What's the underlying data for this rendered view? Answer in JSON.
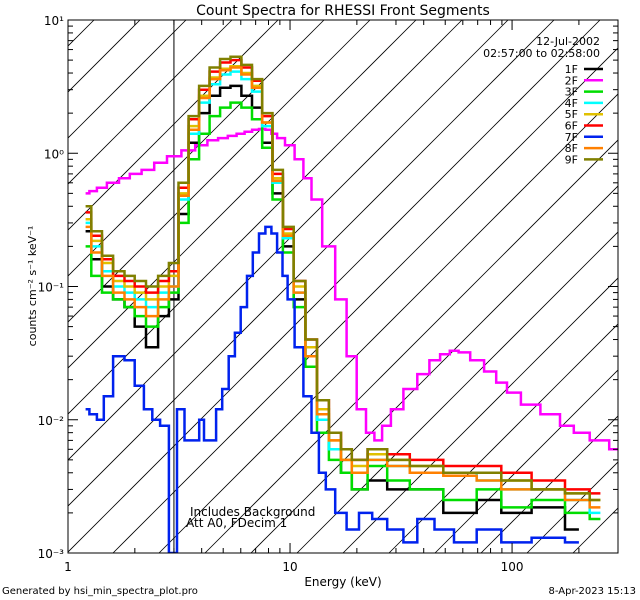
{
  "footer": {
    "generated_by": "Generated by hsi_min_spectra_plot.pro",
    "timestamp": "8-Apr-2023 15:13"
  },
  "annotations": {
    "date": "12-Jul-2002",
    "time_range": "02:57:00 to 02:58:00",
    "background_note": "Includes Background",
    "attenuator_note": "Att A0, FDecim 1"
  },
  "chart_data": {
    "type": "line",
    "title": "Count Spectra for RHESSI Front Segments",
    "xlabel": "Energy (keV)",
    "ylabel": "counts cm⁻² s⁻¹ keV⁻¹",
    "xscale": "log",
    "yscale": "log",
    "xlim": [
      1,
      300
    ],
    "ylim": [
      0.001,
      10
    ],
    "x_ticks": [
      {
        "value": 1,
        "label": "1"
      },
      {
        "value": 10,
        "label": "10"
      },
      {
        "value": 100,
        "label": "100"
      }
    ],
    "y_ticks": [
      {
        "value": 0.001,
        "label": "10⁻³"
      },
      {
        "value": 0.01,
        "label": "10⁻²"
      },
      {
        "value": 0.1,
        "label": "10⁻¹"
      },
      {
        "value": 1,
        "label": "10⁰"
      },
      {
        "value": 10,
        "label": "10¹"
      }
    ],
    "excluded_region": {
      "x_min": 1,
      "x_max": 3,
      "style": "hatched"
    },
    "legend_position": "top-right",
    "series": [
      {
        "name": "1F",
        "color": "#000000",
        "x": [
          1.2,
          1.35,
          1.5,
          1.7,
          1.9,
          2.1,
          2.4,
          2.7,
          3.0,
          3.3,
          3.7,
          4.1,
          4.6,
          5.1,
          5.7,
          6.4,
          7.1,
          7.9,
          8.8,
          9.8,
          11,
          12.5,
          14,
          16,
          18,
          20,
          25,
          30,
          40,
          60,
          80,
          100,
          150,
          200
        ],
        "y": [
          0.26,
          0.16,
          0.1,
          0.08,
          0.07,
          0.05,
          0.035,
          0.06,
          0.08,
          0.35,
          1.2,
          2.0,
          2.7,
          3.1,
          3.2,
          2.7,
          2.2,
          1.2,
          0.5,
          0.2,
          0.08,
          0.03,
          0.01,
          0.006,
          0.004,
          0.003,
          0.0035,
          0.003,
          0.003,
          0.002,
          0.0025,
          0.002,
          0.0022,
          0.0015
        ]
      },
      {
        "name": "2F",
        "color": "#ff00ff",
        "x": [
          1.2,
          1.3,
          1.4,
          1.6,
          1.8,
          2.0,
          2.3,
          2.6,
          3.0,
          3.5,
          4.0,
          4.5,
          5.0,
          5.5,
          6.0,
          6.5,
          7.0,
          7.5,
          8.0,
          8.5,
          9.0,
          10,
          11,
          12,
          13,
          15,
          17,
          19,
          21,
          23,
          25,
          27,
          30,
          35,
          40,
          45,
          50,
          55,
          60,
          70,
          80,
          90,
          100,
          120,
          150,
          180,
          200,
          250,
          300
        ],
        "y": [
          0.5,
          0.52,
          0.55,
          0.6,
          0.65,
          0.7,
          0.75,
          0.85,
          0.95,
          1.05,
          1.15,
          1.25,
          1.3,
          1.35,
          1.4,
          1.45,
          1.5,
          1.52,
          1.5,
          1.4,
          1.3,
          1.15,
          0.9,
          0.65,
          0.45,
          0.2,
          0.08,
          0.03,
          0.012,
          0.008,
          0.007,
          0.009,
          0.012,
          0.017,
          0.022,
          0.028,
          0.031,
          0.033,
          0.032,
          0.028,
          0.023,
          0.019,
          0.016,
          0.013,
          0.011,
          0.009,
          0.008,
          0.007,
          0.006
        ]
      },
      {
        "name": "3F",
        "color": "#00dd00",
        "x": [
          1.2,
          1.35,
          1.5,
          1.7,
          1.9,
          2.1,
          2.4,
          2.7,
          3.0,
          3.3,
          3.7,
          4.1,
          4.6,
          5.1,
          5.7,
          6.4,
          7.1,
          7.9,
          8.8,
          9.8,
          11,
          12.5,
          14,
          16,
          18,
          20,
          25,
          30,
          40,
          60,
          80,
          100,
          150,
          200,
          250
        ],
        "y": [
          0.2,
          0.12,
          0.09,
          0.08,
          0.07,
          0.06,
          0.05,
          0.07,
          0.09,
          0.3,
          0.9,
          1.4,
          1.9,
          2.2,
          2.4,
          2.2,
          1.8,
          1.1,
          0.45,
          0.18,
          0.07,
          0.025,
          0.008,
          0.005,
          0.004,
          0.003,
          0.0045,
          0.0035,
          0.003,
          0.0025,
          0.003,
          0.0022,
          0.0025,
          0.002,
          0.0018
        ]
      },
      {
        "name": "4F",
        "color": "#00ffff",
        "x": [
          1.2,
          1.35,
          1.5,
          1.7,
          1.9,
          2.1,
          2.4,
          2.7,
          3.0,
          3.3,
          3.7,
          4.1,
          4.6,
          5.1,
          5.7,
          6.4,
          7.1,
          7.9,
          8.8,
          9.8,
          11,
          12.5,
          14,
          16,
          18,
          20,
          25,
          30,
          40,
          60,
          80,
          100,
          150,
          200,
          250
        ],
        "y": [
          0.3,
          0.2,
          0.13,
          0.1,
          0.09,
          0.08,
          0.07,
          0.09,
          0.1,
          0.45,
          1.4,
          2.4,
          3.3,
          3.9,
          4.1,
          3.6,
          2.9,
          1.6,
          0.6,
          0.23,
          0.09,
          0.03,
          0.01,
          0.006,
          0.005,
          0.004,
          0.005,
          0.0045,
          0.004,
          0.004,
          0.0035,
          0.003,
          0.003,
          0.0025,
          0.002
        ]
      },
      {
        "name": "5F",
        "color": "#e0c000",
        "x": [
          1.2,
          1.35,
          1.5,
          1.7,
          1.9,
          2.1,
          2.4,
          2.7,
          3.0,
          3.3,
          3.7,
          4.1,
          4.6,
          5.1,
          5.7,
          6.4,
          7.1,
          7.9,
          8.8,
          9.8,
          11,
          12.5,
          14,
          16,
          18,
          20,
          25,
          30,
          40,
          60,
          80,
          100,
          150,
          200,
          250
        ],
        "y": [
          0.32,
          0.22,
          0.15,
          0.11,
          0.1,
          0.09,
          0.08,
          0.1,
          0.12,
          0.5,
          1.6,
          2.7,
          3.7,
          4.3,
          4.5,
          4.0,
          3.2,
          1.7,
          0.65,
          0.25,
          0.1,
          0.035,
          0.012,
          0.007,
          0.005,
          0.0045,
          0.0055,
          0.005,
          0.0045,
          0.004,
          0.004,
          0.0035,
          0.003,
          0.0028,
          0.0025
        ]
      },
      {
        "name": "6F",
        "color": "#ff0000",
        "x": [
          1.2,
          1.35,
          1.5,
          1.7,
          1.9,
          2.1,
          2.4,
          2.7,
          3.0,
          3.3,
          3.7,
          4.1,
          4.6,
          5.1,
          5.7,
          6.4,
          7.1,
          7.9,
          8.8,
          9.8,
          11,
          12.5,
          14,
          16,
          18,
          20,
          25,
          30,
          40,
          60,
          80,
          100,
          150,
          200,
          250
        ],
        "y": [
          0.36,
          0.24,
          0.16,
          0.12,
          0.11,
          0.1,
          0.09,
          0.11,
          0.13,
          0.55,
          1.8,
          3.0,
          4.1,
          4.8,
          5.0,
          4.4,
          3.5,
          1.9,
          0.7,
          0.27,
          0.11,
          0.04,
          0.014,
          0.008,
          0.006,
          0.005,
          0.006,
          0.0055,
          0.005,
          0.0045,
          0.0045,
          0.004,
          0.0035,
          0.003,
          0.0028
        ]
      },
      {
        "name": "7F",
        "color": "#0022ee",
        "x": [
          1.2,
          1.3,
          1.4,
          1.5,
          1.7,
          1.9,
          2.1,
          2.3,
          2.5,
          2.7,
          3.0,
          3.2,
          3.5,
          3.8,
          4.0,
          4.2,
          4.5,
          4.8,
          5.1,
          5.5,
          5.8,
          6.2,
          6.6,
          7.0,
          7.5,
          8.0,
          8.5,
          9.0,
          9.5,
          10,
          11,
          12,
          13,
          14,
          15,
          17,
          19,
          22,
          25,
          30,
          35,
          40,
          50,
          60,
          80,
          100,
          150,
          200
        ],
        "y": [
          0.012,
          0.011,
          0.01,
          0.015,
          0.03,
          0.028,
          0.018,
          0.012,
          0.01,
          0.009,
          0.001,
          0.012,
          0.007,
          0.007,
          0.01,
          0.007,
          0.007,
          0.012,
          0.017,
          0.03,
          0.045,
          0.07,
          0.12,
          0.18,
          0.25,
          0.28,
          0.25,
          0.18,
          0.12,
          0.08,
          0.035,
          0.015,
          0.008,
          0.004,
          0.003,
          0.002,
          0.0015,
          0.002,
          0.0018,
          0.0015,
          0.0012,
          0.0018,
          0.0015,
          0.0012,
          0.0015,
          0.0012,
          0.0013,
          0.0012
        ]
      },
      {
        "name": "8F",
        "color": "#ff8000",
        "x": [
          1.2,
          1.35,
          1.5,
          1.7,
          1.9,
          2.1,
          2.4,
          2.7,
          3.0,
          3.3,
          3.7,
          4.1,
          4.6,
          5.1,
          5.7,
          6.4,
          7.1,
          7.9,
          8.8,
          9.8,
          11,
          12.5,
          14,
          16,
          18,
          20,
          25,
          30,
          40,
          60,
          80,
          100,
          150,
          200,
          250
        ],
        "y": [
          0.28,
          0.18,
          0.12,
          0.09,
          0.08,
          0.07,
          0.06,
          0.08,
          0.1,
          0.48,
          1.5,
          2.6,
          3.6,
          4.2,
          4.4,
          3.9,
          3.1,
          1.7,
          0.62,
          0.24,
          0.09,
          0.03,
          0.011,
          0.007,
          0.005,
          0.004,
          0.005,
          0.0045,
          0.004,
          0.0038,
          0.0035,
          0.003,
          0.003,
          0.0025,
          0.0022
        ]
      },
      {
        "name": "9F",
        "color": "#808000",
        "x": [
          1.2,
          1.35,
          1.5,
          1.7,
          1.9,
          2.1,
          2.4,
          2.7,
          3.0,
          3.3,
          3.7,
          4.1,
          4.6,
          5.1,
          5.7,
          6.4,
          7.1,
          7.9,
          8.8,
          9.8,
          11,
          12.5,
          14,
          16,
          18,
          20,
          25,
          30,
          40,
          60,
          80,
          100,
          150,
          200,
          250
        ],
        "y": [
          0.4,
          0.26,
          0.17,
          0.13,
          0.12,
          0.11,
          0.1,
          0.12,
          0.15,
          0.6,
          1.9,
          3.2,
          4.4,
          5.1,
          5.3,
          4.6,
          3.6,
          2.0,
          0.75,
          0.28,
          0.11,
          0.04,
          0.014,
          0.008,
          0.006,
          0.005,
          0.006,
          0.005,
          0.0045,
          0.004,
          0.004,
          0.0035,
          0.003,
          0.0028,
          0.0025
        ]
      }
    ]
  }
}
